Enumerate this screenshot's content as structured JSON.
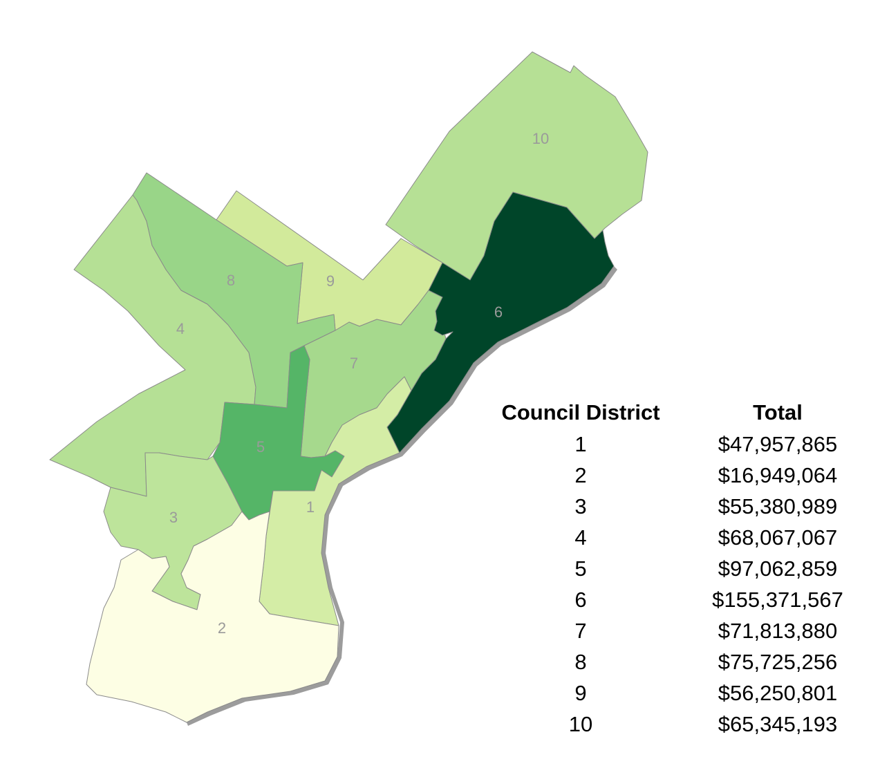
{
  "table": {
    "headers": [
      "Council District",
      "Total"
    ],
    "rows": [
      {
        "district": "1",
        "total": "$47,957,865"
      },
      {
        "district": "2",
        "total": "$16,949,064"
      },
      {
        "district": "3",
        "total": "$55,380,989"
      },
      {
        "district": "4",
        "total": "$68,067,067"
      },
      {
        "district": "5",
        "total": "$97,062,859"
      },
      {
        "district": "6",
        "total": "$155,371,567"
      },
      {
        "district": "7",
        "total": "$71,813,880"
      },
      {
        "district": "8",
        "total": "$75,725,256"
      },
      {
        "district": "9",
        "total": "$56,250,801"
      },
      {
        "district": "10",
        "total": "$65,345,193"
      }
    ]
  },
  "map": {
    "districts": [
      {
        "id": "1",
        "label": "1",
        "fill": "#d4eda6"
      },
      {
        "id": "2",
        "label": "2",
        "fill": "#fdfee4"
      },
      {
        "id": "3",
        "label": "3",
        "fill": "#bde49b"
      },
      {
        "id": "4",
        "label": "4",
        "fill": "#b5e095"
      },
      {
        "id": "5",
        "label": "5",
        "fill": "#55b567"
      },
      {
        "id": "6",
        "label": "6",
        "fill": "#004529"
      },
      {
        "id": "7",
        "label": "7",
        "fill": "#a6d98d"
      },
      {
        "id": "8",
        "label": "8",
        "fill": "#99d588"
      },
      {
        "id": "9",
        "label": "9",
        "fill": "#d2ea9b"
      },
      {
        "id": "10",
        "label": "10",
        "fill": "#b6e095"
      }
    ]
  }
}
